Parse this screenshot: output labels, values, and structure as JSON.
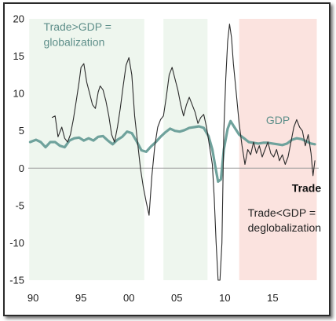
{
  "chart_data": {
    "type": "line",
    "x_ticks": [
      "90",
      "95",
      "00",
      "05",
      "10",
      "15"
    ],
    "x_tick_values": [
      1990,
      1995,
      2000,
      2005,
      2010,
      2015
    ],
    "xlim": [
      1989.5,
      2019.8
    ],
    "y_ticks": [
      "20",
      "15",
      "10",
      "5",
      "0",
      "-5",
      "-10",
      "-15"
    ],
    "y_tick_values": [
      20,
      15,
      10,
      5,
      0,
      -5,
      -10,
      -15
    ],
    "ylim": [
      -15,
      20
    ],
    "shaded_regions": [
      {
        "from": 1989.6,
        "to": 2001.6,
        "color": "#eef6ee"
      },
      {
        "from": 2003.6,
        "to": 2008.2,
        "color": "#eef6ee"
      },
      {
        "from": 2011.5,
        "to": 2019.6,
        "color": "#fbe3df"
      }
    ],
    "annotations": [
      {
        "id": "ann-globalization-1",
        "text": "Trade>GDP =",
        "color": "#5e8f8a",
        "x": 1991.1,
        "y": 18.4
      },
      {
        "id": "ann-globalization-2",
        "text": "globalization",
        "color": "#5e8f8a",
        "x": 1991.1,
        "y": 16.4
      },
      {
        "id": "ann-gdp",
        "text": "GDP",
        "color": "#5e8f8a",
        "x": 2014.3,
        "y": 5.9
      },
      {
        "id": "ann-trade",
        "text": "Trade",
        "color": "#111111",
        "x": 2017.0,
        "y": -3.2
      },
      {
        "id": "ann-deglobalization-1",
        "text": "Trade<GDP =",
        "color": "#222222",
        "x": 2012.4,
        "y": -6.5
      },
      {
        "id": "ann-deglobalization-2",
        "text": "deglobalization",
        "color": "#222222",
        "x": 2012.4,
        "y": -8.5
      }
    ],
    "series": [
      {
        "name": "Trade",
        "color": "#2b2b2b",
        "points": [
          [
            1992.0,
            6.8
          ],
          [
            1992.3,
            7.0
          ],
          [
            1992.6,
            4.2
          ],
          [
            1993.0,
            5.5
          ],
          [
            1993.3,
            4.0
          ],
          [
            1993.6,
            3.5
          ],
          [
            1993.9,
            4.5
          ],
          [
            1994.2,
            6.5
          ],
          [
            1994.5,
            9.0
          ],
          [
            1994.8,
            11.5
          ],
          [
            1995.0,
            13.5
          ],
          [
            1995.3,
            14.0
          ],
          [
            1995.6,
            11.5
          ],
          [
            1995.9,
            10.0
          ],
          [
            1996.2,
            8.5
          ],
          [
            1996.5,
            8.0
          ],
          [
            1996.8,
            10.2
          ],
          [
            1997.0,
            11.0
          ],
          [
            1997.3,
            10.5
          ],
          [
            1997.6,
            9.0
          ],
          [
            1997.9,
            7.0
          ],
          [
            1998.2,
            4.5
          ],
          [
            1998.5,
            3.5
          ],
          [
            1998.8,
            5.5
          ],
          [
            1999.1,
            8.0
          ],
          [
            1999.4,
            11.0
          ],
          [
            1999.7,
            13.8
          ],
          [
            2000.0,
            14.8
          ],
          [
            2000.3,
            12.5
          ],
          [
            2000.6,
            7.0
          ],
          [
            2000.9,
            3.5
          ],
          [
            2001.2,
            0.0
          ],
          [
            2001.5,
            -2.5
          ],
          [
            2001.8,
            -4.5
          ],
          [
            2002.1,
            -6.3
          ],
          [
            2002.4,
            -1.0
          ],
          [
            2002.7,
            3.0
          ],
          [
            2003.0,
            5.5
          ],
          [
            2003.3,
            6.5
          ],
          [
            2003.6,
            7.0
          ],
          [
            2003.9,
            9.5
          ],
          [
            2004.2,
            12.5
          ],
          [
            2004.5,
            13.5
          ],
          [
            2004.8,
            12.0
          ],
          [
            2005.1,
            10.5
          ],
          [
            2005.4,
            8.5
          ],
          [
            2005.7,
            7.0
          ],
          [
            2006.0,
            8.5
          ],
          [
            2006.3,
            9.5
          ],
          [
            2006.6,
            8.5
          ],
          [
            2006.9,
            7.5
          ],
          [
            2007.2,
            6.0
          ],
          [
            2007.5,
            6.8
          ],
          [
            2007.8,
            7.2
          ],
          [
            2008.1,
            5.5
          ],
          [
            2008.4,
            3.0
          ],
          [
            2008.7,
            0.5
          ],
          [
            2008.9,
            -4.0
          ],
          [
            2009.1,
            -10.0
          ],
          [
            2009.3,
            -15.0
          ],
          [
            2009.5,
            -15.0
          ],
          [
            2009.7,
            -10.0
          ],
          [
            2009.9,
            5.0
          ],
          [
            2010.1,
            12.0
          ],
          [
            2010.3,
            17.0
          ],
          [
            2010.5,
            19.3
          ],
          [
            2010.7,
            17.5
          ],
          [
            2010.9,
            14.0
          ],
          [
            2011.2,
            10.0
          ],
          [
            2011.5,
            6.0
          ],
          [
            2011.8,
            3.0
          ],
          [
            2012.1,
            0.5
          ],
          [
            2012.4,
            2.5
          ],
          [
            2012.7,
            1.8
          ],
          [
            2013.0,
            3.5
          ],
          [
            2013.3,
            2.0
          ],
          [
            2013.6,
            3.0
          ],
          [
            2013.9,
            1.5
          ],
          [
            2014.2,
            2.5
          ],
          [
            2014.5,
            3.5
          ],
          [
            2014.8,
            2.0
          ],
          [
            2015.1,
            1.5
          ],
          [
            2015.4,
            2.5
          ],
          [
            2015.7,
            1.0
          ],
          [
            2016.0,
            1.8
          ],
          [
            2016.3,
            0.5
          ],
          [
            2016.6,
            1.5
          ],
          [
            2016.9,
            3.5
          ],
          [
            2017.2,
            5.5
          ],
          [
            2017.5,
            6.5
          ],
          [
            2017.8,
            5.5
          ],
          [
            2018.1,
            5.0
          ],
          [
            2018.4,
            3.0
          ],
          [
            2018.7,
            4.5
          ],
          [
            2019.0,
            2.0
          ],
          [
            2019.2,
            -1.0
          ],
          [
            2019.4,
            1.0
          ]
        ]
      },
      {
        "name": "GDP",
        "color": "#6fa29c",
        "points": [
          [
            1989.7,
            3.5
          ],
          [
            1990.3,
            3.8
          ],
          [
            1990.8,
            3.5
          ],
          [
            1991.3,
            2.8
          ],
          [
            1991.8,
            3.5
          ],
          [
            1992.3,
            3.5
          ],
          [
            1992.8,
            3.0
          ],
          [
            1993.3,
            2.8
          ],
          [
            1993.8,
            3.7
          ],
          [
            1994.3,
            4.0
          ],
          [
            1994.8,
            4.1
          ],
          [
            1995.3,
            3.7
          ],
          [
            1995.8,
            4.0
          ],
          [
            1996.3,
            3.7
          ],
          [
            1996.8,
            4.2
          ],
          [
            1997.3,
            4.3
          ],
          [
            1997.8,
            3.7
          ],
          [
            1998.3,
            3.2
          ],
          [
            1998.8,
            3.8
          ],
          [
            1999.3,
            4.2
          ],
          [
            1999.8,
            4.9
          ],
          [
            2000.3,
            4.7
          ],
          [
            2000.8,
            3.6
          ],
          [
            2001.3,
            2.4
          ],
          [
            2001.8,
            2.2
          ],
          [
            2002.3,
            2.9
          ],
          [
            2002.8,
            3.5
          ],
          [
            2003.3,
            4.2
          ],
          [
            2003.8,
            4.8
          ],
          [
            2004.3,
            5.3
          ],
          [
            2004.8,
            5.0
          ],
          [
            2005.3,
            4.9
          ],
          [
            2005.8,
            5.1
          ],
          [
            2006.3,
            5.4
          ],
          [
            2006.8,
            5.5
          ],
          [
            2007.3,
            5.6
          ],
          [
            2007.8,
            5.4
          ],
          [
            2008.3,
            4.3
          ],
          [
            2008.7,
            2.5
          ],
          [
            2009.0,
            0.3
          ],
          [
            2009.3,
            -1.8
          ],
          [
            2009.6,
            -1.5
          ],
          [
            2009.9,
            2.5
          ],
          [
            2010.3,
            5.3
          ],
          [
            2010.6,
            6.3
          ],
          [
            2011.0,
            5.5
          ],
          [
            2011.5,
            4.5
          ],
          [
            2012.0,
            4.0
          ],
          [
            2012.5,
            3.5
          ],
          [
            2013.0,
            3.4
          ],
          [
            2013.5,
            3.3
          ],
          [
            2014.0,
            3.4
          ],
          [
            2014.5,
            3.4
          ],
          [
            2015.0,
            3.3
          ],
          [
            2015.5,
            3.2
          ],
          [
            2016.0,
            3.1
          ],
          [
            2016.5,
            3.3
          ],
          [
            2017.0,
            3.8
          ],
          [
            2017.5,
            4.0
          ],
          [
            2018.0,
            3.9
          ],
          [
            2018.5,
            3.6
          ],
          [
            2019.0,
            3.3
          ],
          [
            2019.4,
            3.2
          ]
        ]
      }
    ]
  }
}
